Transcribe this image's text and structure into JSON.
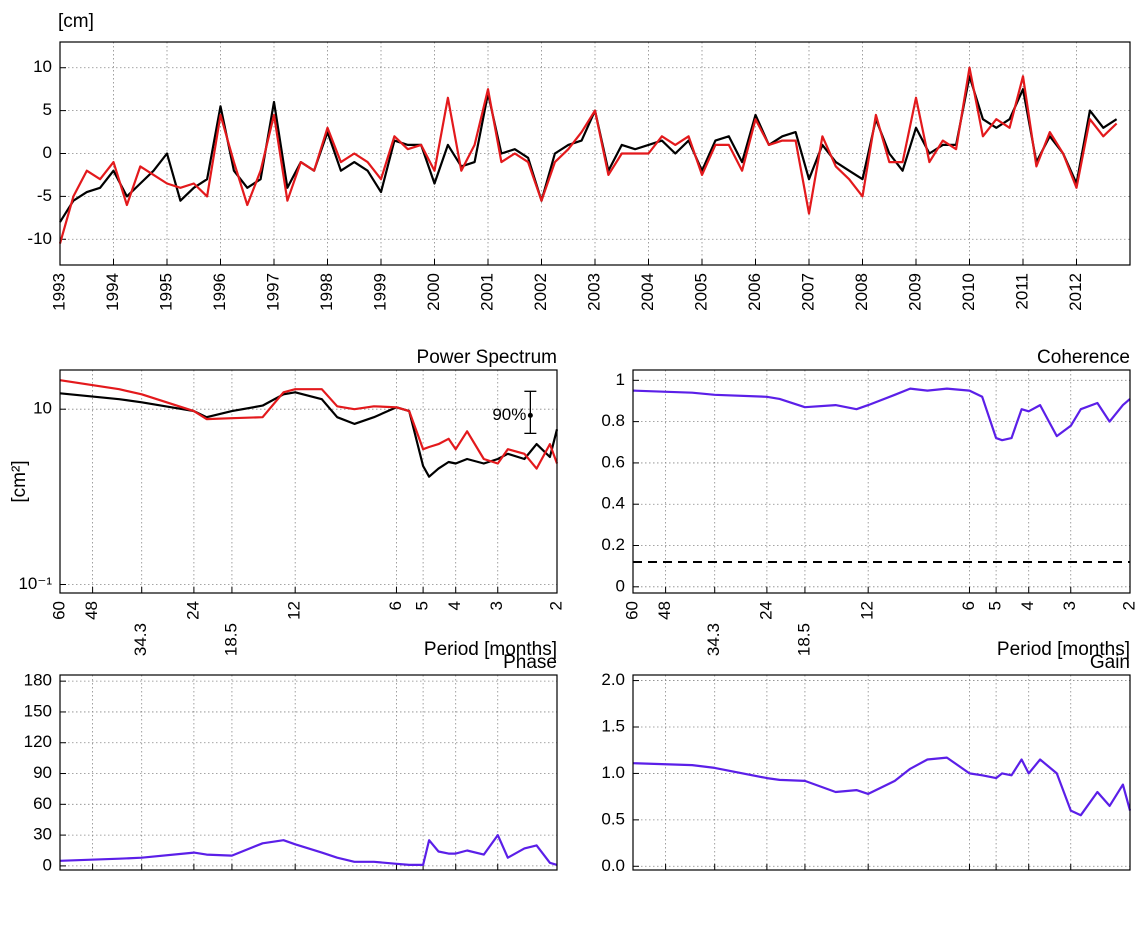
{
  "chart_data": [
    {
      "type": "line",
      "ylabel": "[cm]",
      "x": [
        1993,
        1993.25,
        1993.5,
        1993.75,
        1994,
        1994.25,
        1994.5,
        1994.75,
        1995,
        1995.25,
        1995.5,
        1995.75,
        1996,
        1996.25,
        1996.5,
        1996.75,
        1997,
        1997.25,
        1997.5,
        1997.75,
        1998,
        1998.25,
        1998.5,
        1998.75,
        1999,
        1999.25,
        1999.5,
        1999.75,
        2000,
        2000.25,
        2000.5,
        2000.75,
        2001,
        2001.25,
        2001.5,
        2001.75,
        2002,
        2002.25,
        2002.5,
        2002.75,
        2003,
        2003.25,
        2003.5,
        2003.75,
        2004,
        2004.25,
        2004.5,
        2004.75,
        2005,
        2005.25,
        2005.5,
        2005.75,
        2006,
        2006.25,
        2006.5,
        2006.75,
        2007,
        2007.25,
        2007.5,
        2007.75,
        2008,
        2008.25,
        2008.5,
        2008.75,
        2009,
        2009.25,
        2009.5,
        2009.75,
        2010,
        2010.25,
        2010.5,
        2010.75,
        2011,
        2011.25,
        2011.5,
        2011.75,
        2012,
        2012.25,
        2012.5,
        2012.75
      ],
      "series": [
        {
          "color": "#000000",
          "values": [
            -8,
            -5.5,
            -4.5,
            -4,
            -2,
            -5,
            -3.5,
            -2,
            0,
            -5.5,
            -4,
            -3,
            5.5,
            -2,
            -4,
            -3,
            6,
            -4,
            -1,
            -2,
            2.5,
            -2,
            -1,
            -2,
            -4.5,
            1.5,
            1,
            1,
            -3.5,
            1,
            -1.5,
            -1,
            7,
            0,
            0.5,
            -0.5,
            -5.5,
            0,
            1,
            1.5,
            5,
            -2,
            1,
            0.5,
            1,
            1.5,
            0,
            1.5,
            -2,
            1.5,
            2,
            -1,
            4.5,
            1,
            2,
            2.5,
            -3,
            1,
            -1,
            -2,
            -3,
            4,
            0,
            -2,
            3,
            0,
            1,
            1,
            9,
            4,
            3,
            4,
            7.5,
            -1,
            2,
            0,
            -3.5,
            5,
            3,
            4
          ]
        },
        {
          "color": "#e3191c",
          "values": [
            -10.5,
            -5,
            -2,
            -3,
            -1,
            -6,
            -1.5,
            -2.5,
            -3.5,
            -4,
            -3.5,
            -5,
            4.5,
            -1,
            -6,
            -2,
            4.5,
            -5.5,
            -1,
            -2,
            3,
            -1,
            0,
            -1,
            -3,
            2,
            0.5,
            1,
            -2,
            6.5,
            -2,
            1,
            7.5,
            -1,
            0,
            -1,
            -5.5,
            -1,
            0.5,
            2.5,
            5,
            -2.5,
            0,
            0,
            0,
            2,
            1,
            2,
            -2.5,
            1,
            1,
            -2,
            4,
            1,
            1.5,
            1.5,
            -7,
            2,
            -1.5,
            -3,
            -5,
            4.5,
            -1,
            -1,
            6.5,
            -1,
            1.5,
            0.5,
            10,
            2,
            4,
            3,
            9,
            -1.5,
            2.5,
            0,
            -4,
            4,
            2,
            3.5
          ]
        }
      ],
      "xlim": [
        1993,
        2013
      ],
      "ylim": [
        -13,
        13
      ],
      "xticks": [
        1993,
        1994,
        1995,
        1996,
        1997,
        1998,
        1999,
        2000,
        2001,
        2002,
        2003,
        2004,
        2005,
        2006,
        2007,
        2008,
        2009,
        2010,
        2011,
        2012
      ],
      "yticks": [
        -10,
        -5,
        0,
        5,
        10
      ],
      "grid": true
    },
    {
      "type": "line",
      "title": "Power Spectrum",
      "ylabel": "[cm²]",
      "xlabel": "Period [months]",
      "xlog": true,
      "ylog": true,
      "x": [
        60,
        40,
        34.3,
        24,
        22,
        18.5,
        15,
        13,
        12,
        10,
        9,
        8,
        7,
        6,
        5.5,
        5,
        4.8,
        4.5,
        4.2,
        4,
        3.7,
        3.3,
        3,
        2.8,
        2.5,
        2.3,
        2.1,
        2
      ],
      "series": [
        {
          "color": "#000000",
          "values": [
            15.2,
            13,
            12,
            9.5,
            8.1,
            9.5,
            11,
            14.8,
            15.6,
            13,
            8.1,
            6.8,
            8.1,
            10.5,
            9.5,
            2.25,
            1.7,
            2.1,
            2.5,
            2.4,
            2.7,
            2.4,
            2.7,
            3.1,
            2.7,
            4.0,
            2.85,
            5.9
          ]
        },
        {
          "color": "#e3191c",
          "values": [
            21.4,
            16.9,
            14.8,
            9.5,
            7.7,
            7.9,
            8.1,
            15.6,
            16.9,
            16.9,
            10.8,
            10,
            10.8,
            10.5,
            9.5,
            3.5,
            3.7,
            4.0,
            4.6,
            3.5,
            5.6,
            2.7,
            2.4,
            3.5,
            3.1,
            2.1,
            4.0,
            2.4
          ]
        }
      ],
      "errorbar": {
        "label": "90%",
        "x": 2.4,
        "center": 8.5,
        "low": 5.3,
        "high": 16
      },
      "xlim": [
        60,
        2
      ],
      "ylim": [
        0.08,
        28
      ],
      "xticks": [
        60,
        48,
        34.3,
        24,
        18.5,
        12,
        6,
        5,
        4,
        3,
        2
      ],
      "yticks": [
        {
          "value": 0.1,
          "label": "10⁻¹"
        },
        10
      ],
      "grid": true
    },
    {
      "type": "line",
      "title": "Coherence",
      "xlabel": "Period [months]",
      "xlog": true,
      "x": [
        60,
        40,
        34.3,
        24,
        22,
        18.5,
        15,
        13,
        12,
        10,
        9,
        8,
        7,
        6,
        5.5,
        5,
        4.8,
        4.5,
        4.2,
        4,
        3.7,
        3.3,
        3,
        2.8,
        2.5,
        2.3,
        2.1,
        2
      ],
      "series": [
        {
          "color": "#5b1fe8",
          "values": [
            0.95,
            0.94,
            0.93,
            0.92,
            0.91,
            0.87,
            0.88,
            0.86,
            0.88,
            0.93,
            0.96,
            0.95,
            0.96,
            0.95,
            0.92,
            0.72,
            0.71,
            0.72,
            0.86,
            0.85,
            0.88,
            0.73,
            0.78,
            0.86,
            0.89,
            0.8,
            0.88,
            0.91
          ]
        }
      ],
      "threshold": 0.12,
      "xlim": [
        60,
        2
      ],
      "ylim": [
        -0.03,
        1.05
      ],
      "xticks": [
        60,
        48,
        34.3,
        24,
        18.5,
        12,
        6,
        5,
        4,
        3,
        2
      ],
      "yticks": [
        0,
        0.2,
        0.4,
        0.6,
        0.8,
        1
      ],
      "grid": true
    },
    {
      "type": "line",
      "title": "Phase",
      "xlog": true,
      "xticklabels": false,
      "x": [
        60,
        40,
        34.3,
        24,
        22,
        18.5,
        15,
        13,
        12,
        10,
        9,
        8,
        7,
        6,
        5.5,
        5,
        4.8,
        4.5,
        4.2,
        4,
        3.7,
        3.3,
        3,
        2.8,
        2.5,
        2.3,
        2.1,
        2
      ],
      "series": [
        {
          "color": "#5b1fe8",
          "values": [
            5,
            7,
            8,
            13,
            11,
            10,
            22,
            25,
            21,
            13,
            8,
            4,
            4,
            2,
            1,
            1,
            25,
            14,
            12,
            12,
            15,
            11,
            30,
            8,
            17,
            20,
            3,
            1
          ]
        }
      ],
      "xlim": [
        60,
        2
      ],
      "ylim": [
        -4,
        186
      ],
      "xticks": [
        60,
        48,
        34.3,
        24,
        18.5,
        12,
        6,
        5,
        4,
        3,
        2
      ],
      "yticks": [
        0,
        30,
        60,
        90,
        120,
        150,
        180
      ],
      "grid": true
    },
    {
      "type": "line",
      "title": "Gain",
      "xlog": true,
      "xticklabels": false,
      "x": [
        60,
        40,
        34.3,
        24,
        22,
        18.5,
        15,
        13,
        12,
        10,
        9,
        8,
        7,
        6,
        5.5,
        5,
        4.8,
        4.5,
        4.2,
        4,
        3.7,
        3.3,
        3,
        2.8,
        2.5,
        2.3,
        2.1,
        2
      ],
      "series": [
        {
          "color": "#5b1fe8",
          "values": [
            1.11,
            1.09,
            1.06,
            0.95,
            0.93,
            0.92,
            0.8,
            0.82,
            0.78,
            0.92,
            1.05,
            1.15,
            1.17,
            1.0,
            0.98,
            0.95,
            1.0,
            0.98,
            1.15,
            1.0,
            1.15,
            1.0,
            0.6,
            0.55,
            0.8,
            0.65,
            0.88,
            0.6
          ]
        }
      ],
      "xlim": [
        60,
        2
      ],
      "ylim": [
        -0.04,
        2.06
      ],
      "xticks": [
        60,
        48,
        34.3,
        24,
        18.5,
        12,
        6,
        5,
        4,
        3,
        2
      ],
      "yticks": [
        {
          "value": 0,
          "label": "0.0"
        },
        0.5,
        {
          "value": 1,
          "label": "1.0"
        },
        1.5,
        {
          "value": 2,
          "label": "2.0"
        }
      ],
      "grid": true
    }
  ]
}
